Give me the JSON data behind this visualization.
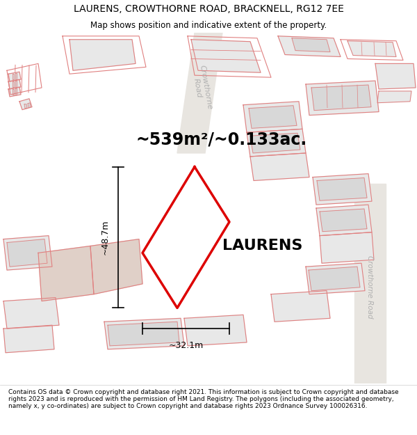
{
  "title": "LAURENS, CROWTHORNE ROAD, BRACKNELL, RG12 7EE",
  "subtitle": "Map shows position and indicative extent of the property.",
  "area_text": "~539m²/~0.133ac.",
  "property_label": "LAURENS",
  "width_label": "~32.1m",
  "height_label": "~48.7m",
  "footer": "Contains OS data © Crown copyright and database right 2021. This information is subject to Crown copyright and database rights 2023 and is reproduced with the permission of HM Land Registry. The polygons (including the associated geometry, namely x, y co-ordinates) are subject to Crown copyright and database rights 2023 Ordnance Survey 100026316.",
  "title_fontsize": 10,
  "subtitle_fontsize": 8.5,
  "area_fontsize": 17,
  "label_fontsize": 16,
  "footer_fontsize": 6.5,
  "building_fill": "#e8e8e8",
  "building_fill2": "#d8d8d8",
  "building_edge": "#e08080",
  "property_edge": "#dd0000",
  "property_fill": "white",
  "road_label_color": "#b0b0b0",
  "highlight_fill": "#e0d0c8"
}
